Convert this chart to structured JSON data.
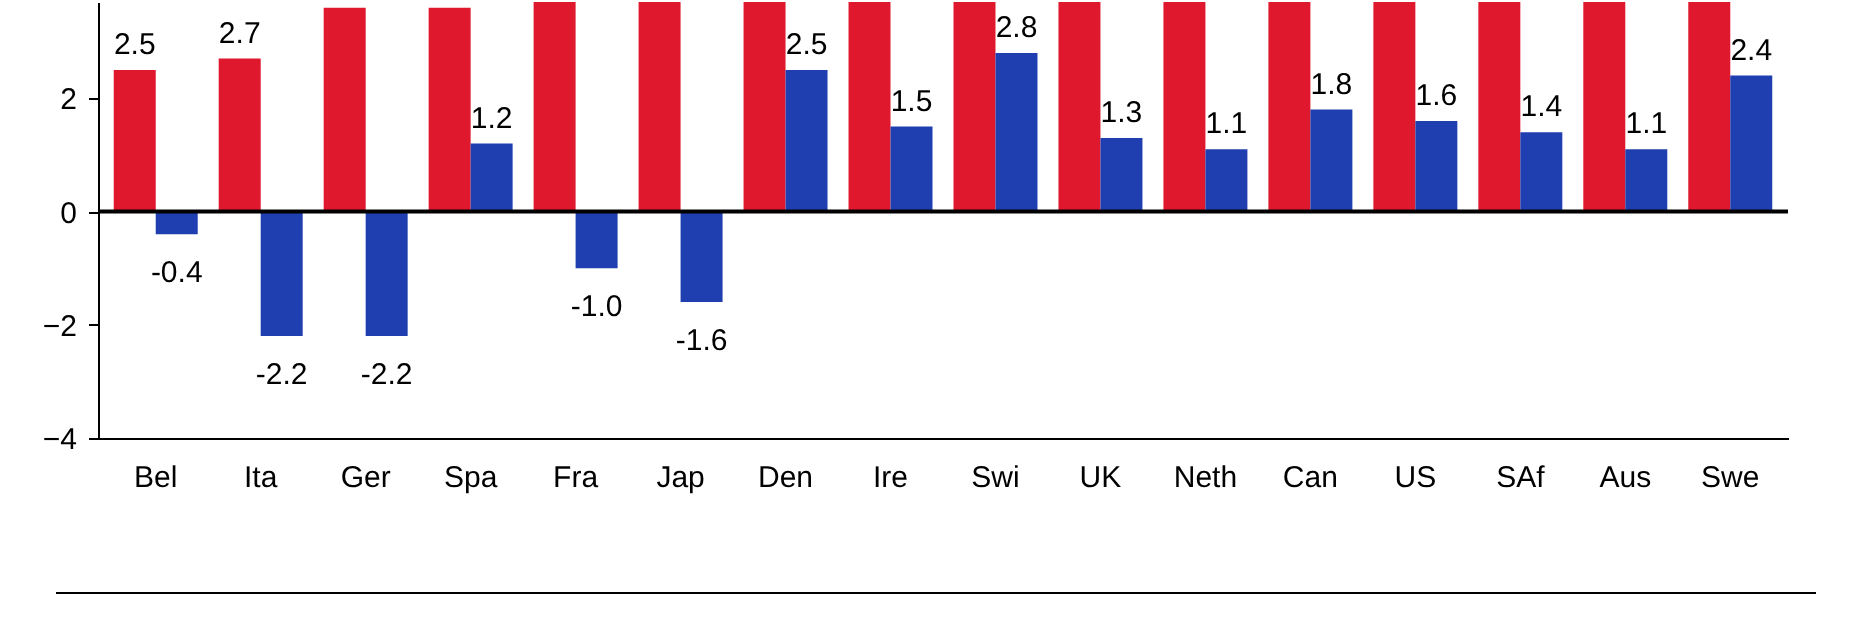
{
  "chart_data": {
    "type": "bar",
    "categories": [
      "Bel",
      "Ita",
      "Ger",
      "Spa",
      "Fra",
      "Jap",
      "Den",
      "Ire",
      "Swi",
      "UK",
      "Neth",
      "Can",
      "US",
      "SAf",
      "Aus",
      "Swe"
    ],
    "series": [
      {
        "color": "#e0182d",
        "values": [
          2.5,
          2.7,
          3.6,
          3.6,
          3.7,
          3.7,
          3.7,
          3.7,
          3.7,
          3.7,
          3.7,
          3.7,
          3.7,
          3.7,
          3.7,
          3.7
        ],
        "value_labels": [
          "2.5",
          "2.7",
          null,
          null,
          null,
          null,
          null,
          null,
          null,
          null,
          null,
          null,
          null,
          null,
          null,
          null
        ]
      },
      {
        "color": "#1f3fb0",
        "values": [
          -0.4,
          -2.2,
          -2.2,
          1.2,
          -1.0,
          -1.6,
          2.5,
          1.5,
          2.8,
          1.3,
          1.1,
          1.8,
          1.6,
          1.4,
          1.1,
          2.4
        ],
        "value_labels": [
          "-0.4",
          "-2.2",
          "-2.2",
          "1.2",
          "-1.0",
          "-1.6",
          "2.5",
          "1.5",
          "2.8",
          "1.3",
          "1.1",
          "1.8",
          "1.6",
          "1.4",
          "1.1",
          "2.4"
        ]
      }
    ],
    "ylim": [
      -4,
      3.7
    ],
    "yticks": [
      -4,
      -2,
      0,
      2
    ],
    "grid": false,
    "legend": false,
    "ref_lines": [
      {
        "axis": "y",
        "value": 0,
        "color": "#000000"
      }
    ]
  }
}
